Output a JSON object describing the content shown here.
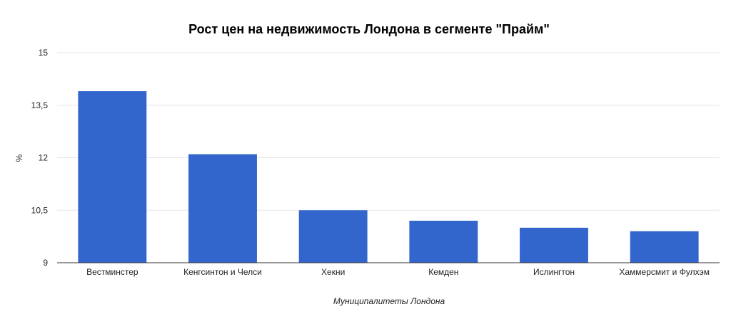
{
  "chart_data": {
    "type": "bar",
    "title": "Рост цен на недвижимость Лондона в сегменте \"Прайм\"",
    "xlabel": "Муниципалитеты Лондона",
    "ylabel": "%",
    "categories": [
      "Вестминстер",
      "Кенгсинтон и Челси",
      "Хекни",
      "Кемден",
      "Ислингтон",
      "Хаммерсмит и Фулхэм"
    ],
    "values": [
      13.9,
      12.1,
      10.5,
      10.2,
      10.0,
      9.9
    ],
    "ylim": [
      9,
      15
    ],
    "yticks": [
      "9",
      "10,5",
      "12",
      "13,5",
      "15"
    ],
    "ytick_values": [
      9,
      10.5,
      12,
      13.5,
      15
    ],
    "bar_color": "#3366cc",
    "grid": true,
    "legend": "none"
  }
}
